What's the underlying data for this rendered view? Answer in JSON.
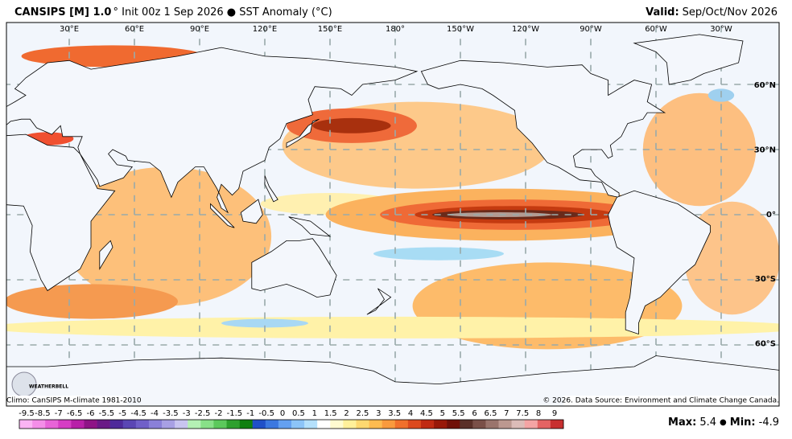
{
  "header": {
    "title_bold": "CANSIPS [M] 1.0",
    "title_rest": "° Init 00z 1 Sep 2026 ● SST Anomaly (°C)",
    "valid_label": "Valid:",
    "valid_value": "Sep/Oct/Nov 2026"
  },
  "map": {
    "lon_labels": [
      "30°E",
      "60°E",
      "90°E",
      "120°E",
      "150°E",
      "180°",
      "150°W",
      "120°W",
      "90°W",
      "60°W",
      "30°W"
    ],
    "lat_labels": [
      "60°N",
      "30°N",
      "0°",
      "30°S",
      "60°S"
    ],
    "logo": "WEATHERBELL",
    "climo": "Climo: CanSIPS M-climate 1981-2010",
    "credit": "© 2026. Data Source: Environment and Climate Change Canada."
  },
  "colorbar": {
    "labels": [
      -9.5,
      -8.5,
      -7,
      -6.5,
      -6,
      -5.5,
      -5,
      -4.5,
      -4,
      -3.5,
      -3,
      -2.5,
      -2,
      -1.5,
      -1,
      -0.5,
      0,
      0.5,
      1,
      1.5,
      2,
      2.5,
      3,
      3.5,
      4,
      4.5,
      5,
      5.5,
      6,
      6.5,
      7,
      7.5,
      8,
      9
    ],
    "colors": [
      "#fbb4f4",
      "#f48ee8",
      "#e864d8",
      "#d63ec4",
      "#b820a8",
      "#8e1486",
      "#6a1a86",
      "#4e2a9a",
      "#5a46b4",
      "#7060c8",
      "#8a80d8",
      "#a8a0e4",
      "#c8c4f0",
      "#b4f0b4",
      "#88e088",
      "#5cc85c",
      "#2ea02e",
      "#108010",
      "#2050c8",
      "#3c78e0",
      "#64a0f0",
      "#8cc4f8",
      "#b4e0fc",
      "#ffffff",
      "#fffbd0",
      "#fff09a",
      "#fdd870",
      "#fdbb50",
      "#f99a3e",
      "#f0702c",
      "#dc4a1e",
      "#c02a12",
      "#981808",
      "#701008",
      "#5a3028",
      "#7a5048",
      "#9a746c",
      "#bc9890",
      "#dcbcb8",
      "#f4a4a4",
      "#e46464",
      "#c83030"
    ]
  },
  "stats": {
    "max_label": "Max:",
    "max": 5.4,
    "separator": "●",
    "min_label": "Min:",
    "min": -4.9
  }
}
